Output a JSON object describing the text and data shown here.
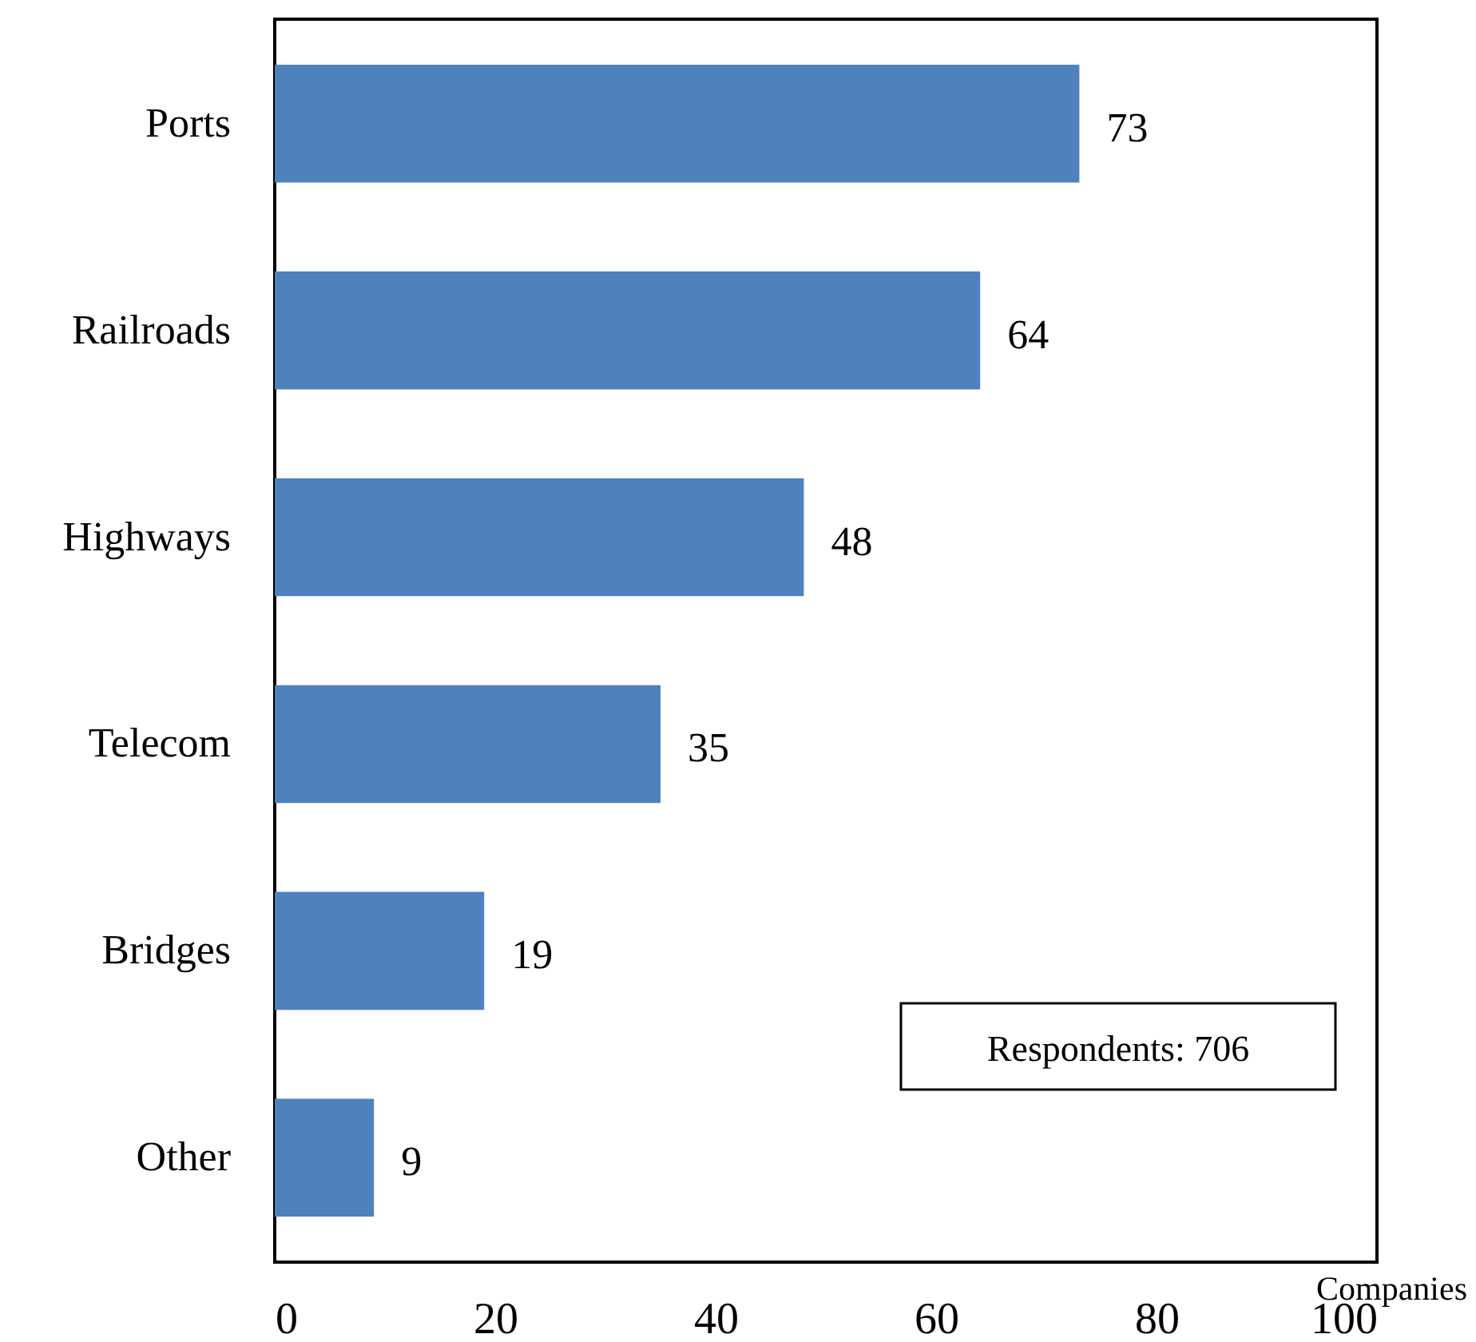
{
  "chart_data": {
    "type": "bar",
    "orientation": "horizontal",
    "xlabel": "Companies",
    "categories": [
      "Ports",
      "Railroads",
      "Highways",
      "Telecom",
      "Bridges",
      "Other"
    ],
    "values": [
      73,
      64,
      48,
      35,
      19,
      9
    ],
    "color": "#4f81bd",
    "xlim": [
      0,
      100
    ],
    "xticks": [
      0,
      20,
      40,
      60,
      80,
      100
    ],
    "grid": false,
    "data_labels": true,
    "annotations": [
      "Respondents: 706"
    ]
  }
}
